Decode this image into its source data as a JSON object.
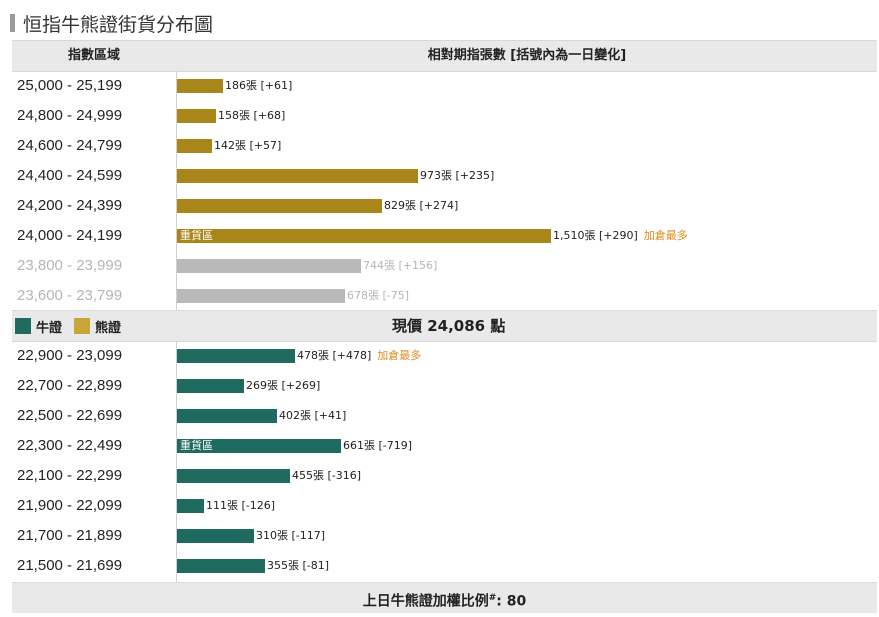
{
  "title": "恒指牛熊證街貨分布圖",
  "header": {
    "range_label": "指數區域",
    "count_label": "相對期指張數 [括號內為一日變化]"
  },
  "legend": {
    "bull_label": "牛證",
    "bear_label": "熊證",
    "bull_color": "#1f6b5f",
    "bear_color": "#c9a63a"
  },
  "current_price_text": "現價 24,086 點",
  "heavy_label": "重貨區",
  "footer": {
    "text": "上日牛熊證加權比例",
    "mark": "#",
    "value_text": ": 80"
  },
  "chart_data": {
    "type": "bar",
    "orientation": "horizontal",
    "max_value": 1510,
    "bear_rows": [
      {
        "range": "25,000 - 25,199",
        "value": 186,
        "label": "186張 [+61]",
        "note": "",
        "heavy": false,
        "muted": false
      },
      {
        "range": "24,800 - 24,999",
        "value": 158,
        "label": "158張 [+68]",
        "note": "",
        "heavy": false,
        "muted": false
      },
      {
        "range": "24,600 - 24,799",
        "value": 142,
        "label": "142張 [+57]",
        "note": "",
        "heavy": false,
        "muted": false
      },
      {
        "range": "24,400 - 24,599",
        "value": 973,
        "label": "973張 [+235]",
        "note": "",
        "heavy": false,
        "muted": false
      },
      {
        "range": "24,200 - 24,399",
        "value": 829,
        "label": "829張 [+274]",
        "note": "",
        "heavy": false,
        "muted": false
      },
      {
        "range": "24,000 - 24,199",
        "value": 1510,
        "label": "1,510張 [+290]",
        "note": "加倉最多",
        "heavy": true,
        "muted": false
      },
      {
        "range": "23,800 - 23,999",
        "value": 744,
        "label": "744張 [+156]",
        "note": "",
        "heavy": false,
        "muted": true
      },
      {
        "range": "23,600 - 23,799",
        "value": 678,
        "label": "678張 [-75]",
        "note": "",
        "heavy": false,
        "muted": true
      }
    ],
    "bull_rows": [
      {
        "range": "22,900 - 23,099",
        "value": 478,
        "label": "478張 [+478]",
        "note": "加倉最多",
        "heavy": false,
        "muted": false
      },
      {
        "range": "22,700 - 22,899",
        "value": 269,
        "label": "269張 [+269]",
        "note": "",
        "heavy": false,
        "muted": false
      },
      {
        "range": "22,500 - 22,699",
        "value": 402,
        "label": "402張 [+41]",
        "note": "",
        "heavy": false,
        "muted": false
      },
      {
        "range": "22,300 - 22,499",
        "value": 661,
        "label": "661張 [-719]",
        "note": "",
        "heavy": true,
        "muted": false
      },
      {
        "range": "22,100 - 22,299",
        "value": 455,
        "label": "455張 [-316]",
        "note": "",
        "heavy": false,
        "muted": false
      },
      {
        "range": "21,900 - 22,099",
        "value": 111,
        "label": "111張 [-126]",
        "note": "",
        "heavy": false,
        "muted": false
      },
      {
        "range": "21,700 - 21,899",
        "value": 310,
        "label": "310張 [-117]",
        "note": "",
        "heavy": false,
        "muted": false
      },
      {
        "range": "21,500 - 21,699",
        "value": 355,
        "label": "355張 [-81]",
        "note": "",
        "heavy": false,
        "muted": false
      }
    ]
  }
}
